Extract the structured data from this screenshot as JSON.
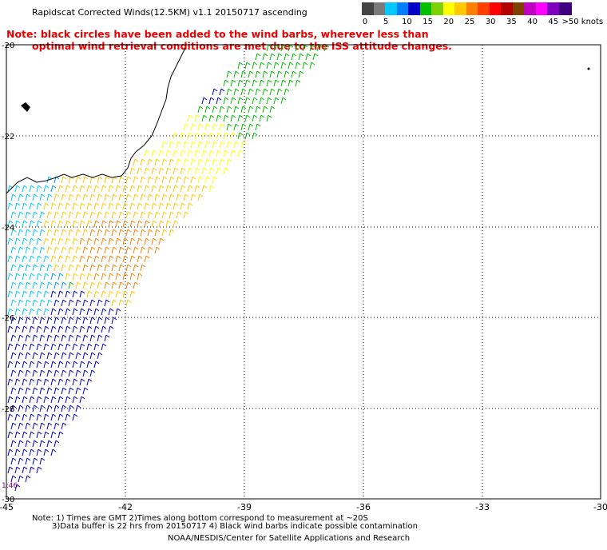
{
  "title": "Rapidscat Corrected Winds(12.5KM) v1.1 20150717 ascending",
  "warning": {
    "line1": "Note: black circles have been added to the wind barbs, wherever less than",
    "line2": "optimal wind retrieval conditions are met due to the ISS attitude changes."
  },
  "legend": {
    "colors": [
      "#444444",
      "#7a7a7a",
      "#00c8ff",
      "#0080ff",
      "#0000c8",
      "#00c000",
      "#7fd000",
      "#ffff00",
      "#ffc800",
      "#ff8000",
      "#ff4000",
      "#ff0000",
      "#b40000",
      "#804000",
      "#c000c0",
      "#ff00ff",
      "#8000c0",
      "#400080"
    ],
    "labels": [
      "0",
      "5",
      "10",
      "15",
      "20",
      "25",
      "30",
      "35",
      "40",
      "45",
      ">50 knots"
    ]
  },
  "axes": {
    "lon_labels": [
      "-45",
      "-42",
      "-39",
      "-36",
      "-33",
      "-30"
    ],
    "lat_labels": [
      "-20",
      "-22",
      "-24",
      "-26",
      "-28",
      "-30"
    ],
    "time_label": "1:46"
  },
  "footnotes": {
    "line1": "Note: 1) Times are GMT 2)Times along bottom correspond to measurement at ~20S",
    "line2": "3)Data buffer is 22 hrs from 20150717 4) Black wind barbs indicate possible contamination",
    "credit": "NOAA/NESDIS/Center for Satellite Applications and Research"
  }
}
